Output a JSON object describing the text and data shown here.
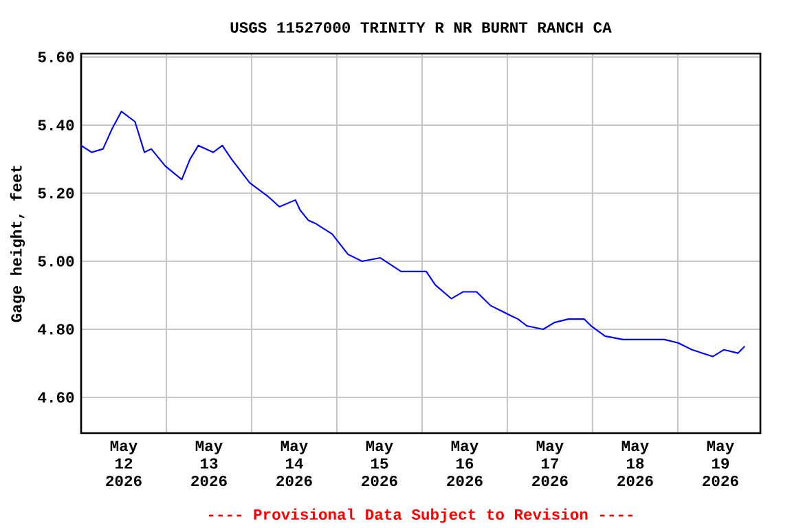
{
  "chart_data": {
    "type": "line",
    "title": "USGS 11527000 TRINITY R NR BURNT RANCH CA",
    "ylabel": "Gage height, feet",
    "annotations": [
      "---- Provisional Data Subject to Revision ----"
    ],
    "xlim": [
      "2026-05-12T00:00",
      "2026-05-19T23:15"
    ],
    "xticks": [
      {
        "value": "2026-05-12T12:00",
        "label": "May 12 2026"
      },
      {
        "value": "2026-05-13T12:00",
        "label": "May 13 2026"
      },
      {
        "value": "2026-05-14T12:00",
        "label": "May 14 2026"
      },
      {
        "value": "2026-05-15T12:00",
        "label": "May 15 2026"
      },
      {
        "value": "2026-05-16T12:00",
        "label": "May 16 2026"
      },
      {
        "value": "2026-05-17T12:00",
        "label": "May 17 2026"
      },
      {
        "value": "2026-05-18T12:00",
        "label": "May 18 2026"
      },
      {
        "value": "2026-05-19T12:00",
        "label": "May 19 2026"
      },
      {
        "value": "2026-05-13T00:00",
        "label": null
      },
      {
        "value": "2026-05-14T00:00",
        "label": null
      },
      {
        "value": "2026-05-15T00:00",
        "label": null
      },
      {
        "value": "2026-05-16T00:00",
        "label": null
      },
      {
        "value": "2026-05-17T00:00",
        "label": null
      },
      {
        "value": "2026-05-18T00:00",
        "label": null
      },
      {
        "value": "2026-05-19T00:00",
        "label": null
      }
    ],
    "ylim": [
      4.495,
      5.61
    ],
    "yticks": [
      {
        "value": 4.6,
        "label": "4.60"
      },
      {
        "value": 4.8,
        "label": "4.80"
      },
      {
        "value": 5.0,
        "label": "5.00"
      },
      {
        "value": 5.2,
        "label": "5.20"
      },
      {
        "value": 5.4,
        "label": "5.40"
      },
      {
        "value": 5.6,
        "label": "5.60"
      }
    ],
    "grid": true,
    "series": [
      {
        "color": "#0000ff",
        "x": [
          "2026-05-12T00:00",
          "2026-05-12T03:00",
          "2026-05-12T06:10",
          "2026-05-12T08:45",
          "2026-05-12T11:20",
          "2026-05-12T15:10",
          "2026-05-12T17:50",
          "2026-05-12T19:45",
          "2026-05-12T23:40",
          "2026-05-13T04:20",
          "2026-05-13T06:40",
          "2026-05-13T09:00",
          "2026-05-13T13:10",
          "2026-05-13T15:45",
          "2026-05-13T18:20",
          "2026-05-13T23:30",
          "2026-05-14T04:40",
          "2026-05-14T07:50",
          "2026-05-14T12:20",
          "2026-05-14T13:40",
          "2026-05-14T16:00",
          "2026-05-14T18:10",
          "2026-05-14T22:40",
          "2026-05-15T03:10",
          "2026-05-15T07:05",
          "2026-05-15T12:15",
          "2026-05-15T18:05",
          "2026-05-15T23:15",
          "2026-05-16T01:10",
          "2026-05-16T03:45",
          "2026-05-16T08:15",
          "2026-05-16T11:30",
          "2026-05-16T15:20",
          "2026-05-16T19:15",
          "2026-05-16T23:05",
          "2026-05-17T01:00",
          "2026-05-17T03:00",
          "2026-05-17T05:30",
          "2026-05-17T10:05",
          "2026-05-17T13:15",
          "2026-05-17T17:10",
          "2026-05-17T21:40",
          "2026-05-17T23:35",
          "2026-05-18T03:30",
          "2026-05-18T08:35",
          "2026-05-18T15:05",
          "2026-05-18T20:15",
          "2026-05-19T00:05",
          "2026-05-19T04:00",
          "2026-05-19T09:50",
          "2026-05-19T13:00",
          "2026-05-19T16:55",
          "2026-05-19T18:50"
        ],
        "values": [
          5.34,
          5.32,
          5.33,
          5.39,
          5.44,
          5.41,
          5.32,
          5.33,
          5.28,
          5.24,
          5.3,
          5.34,
          5.32,
          5.34,
          5.3,
          5.23,
          5.19,
          5.16,
          5.18,
          5.15,
          5.12,
          5.11,
          5.08,
          5.02,
          5.0,
          5.01,
          4.97,
          4.97,
          4.97,
          4.93,
          4.89,
          4.91,
          4.91,
          4.87,
          4.85,
          4.84,
          4.83,
          4.81,
          4.8,
          4.82,
          4.83,
          4.83,
          4.81,
          4.78,
          4.77,
          4.77,
          4.77,
          4.76,
          4.74,
          4.72,
          4.74,
          4.73,
          4.75
        ]
      }
    ]
  }
}
